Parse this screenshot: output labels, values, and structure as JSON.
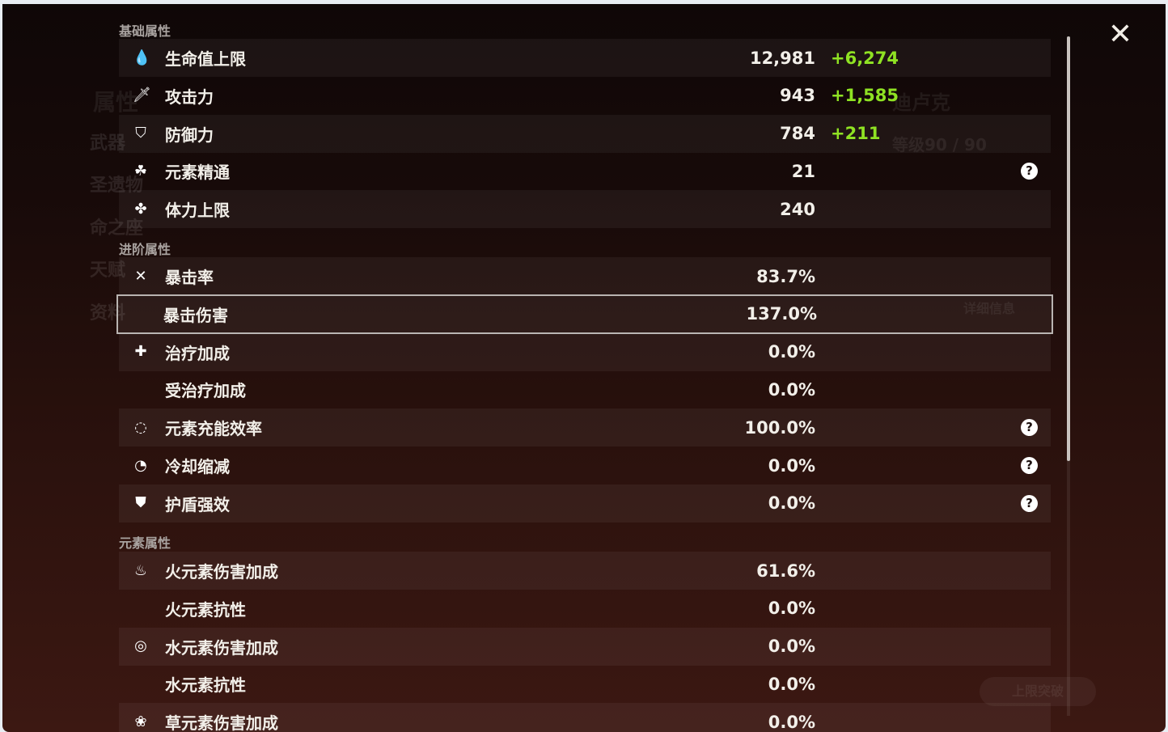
{
  "background": {
    "character_name": "迪卢克",
    "level": "等级90 / 90",
    "details_button": "详细信息",
    "ascend_button": "上限突破",
    "menu_items": [
      "属性",
      "武器",
      "圣遗物",
      "命之座",
      "天赋",
      "资料"
    ]
  },
  "sections": [
    {
      "title": "基础属性",
      "rows": [
        {
          "icon": "hp-drop-icon",
          "glyph": "💧",
          "label": "生命值上限",
          "value": "12,981",
          "bonus": "+6,274"
        },
        {
          "icon": "sword-icon",
          "glyph": "🗡",
          "label": "攻击力",
          "value": "943",
          "bonus": "+1,585"
        },
        {
          "icon": "shield-icon",
          "glyph": "⛉",
          "label": "防御力",
          "value": "784",
          "bonus": "+211"
        },
        {
          "icon": "elemental-mastery-icon",
          "glyph": "☘",
          "label": "元素精通",
          "value": "21",
          "help": true
        },
        {
          "icon": "stamina-icon",
          "glyph": "✤",
          "label": "体力上限",
          "value": "240"
        }
      ]
    },
    {
      "title": "进阶属性",
      "rows": [
        {
          "icon": "crit-rate-icon",
          "glyph": "✕",
          "label": "暴击率",
          "value": "83.7%"
        },
        {
          "icon": "",
          "glyph": "",
          "label": "暴击伤害",
          "value": "137.0%",
          "selected": true
        },
        {
          "icon": "healing-cross-icon",
          "glyph": "✚",
          "label": "治疗加成",
          "value": "0.0%"
        },
        {
          "icon": "",
          "glyph": "",
          "label": "受治疗加成",
          "value": "0.0%"
        },
        {
          "icon": "energy-recharge-icon",
          "glyph": "◌",
          "label": "元素充能效率",
          "value": "100.0%",
          "help": true
        },
        {
          "icon": "cooldown-icon",
          "glyph": "◔",
          "label": "冷却缩减",
          "value": "0.0%",
          "help": true
        },
        {
          "icon": "shield-strength-icon",
          "glyph": "⛊",
          "label": "护盾强效",
          "value": "0.0%",
          "help": true
        }
      ]
    },
    {
      "title": "元素属性",
      "rows": [
        {
          "icon": "pyro-icon",
          "glyph": "♨",
          "label": "火元素伤害加成",
          "value": "61.6%"
        },
        {
          "icon": "",
          "glyph": "",
          "label": "火元素抗性",
          "value": "0.0%"
        },
        {
          "icon": "hydro-icon",
          "glyph": "◎",
          "label": "水元素伤害加成",
          "value": "0.0%"
        },
        {
          "icon": "",
          "glyph": "",
          "label": "水元素抗性",
          "value": "0.0%"
        },
        {
          "icon": "dendro-icon",
          "glyph": "❀",
          "label": "草元素伤害加成",
          "value": "0.0%"
        }
      ]
    }
  ],
  "help_glyph": "?",
  "close_glyph": "✕",
  "colors": {
    "bonus": "#8fe223",
    "text": "#f2efe9",
    "section": "#a9a3a0"
  }
}
